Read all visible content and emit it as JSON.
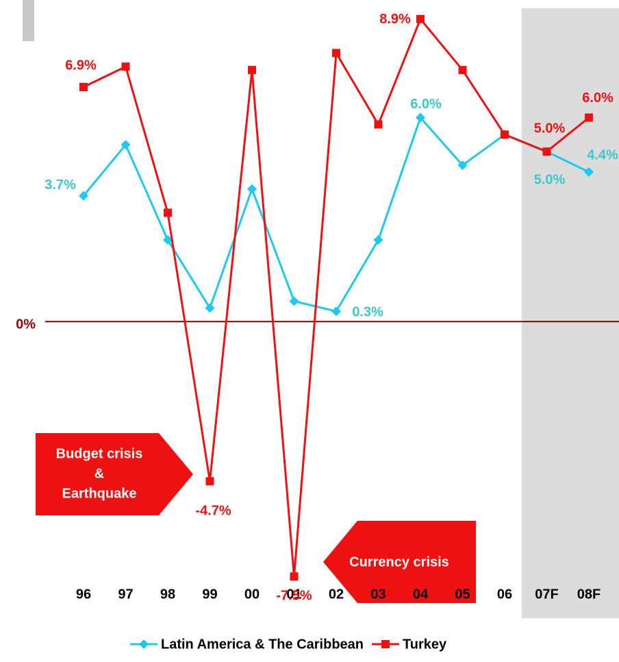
{
  "chart_data": {
    "type": "line",
    "categories": [
      "96",
      "97",
      "98",
      "99",
      "00",
      "01",
      "02",
      "03",
      "04",
      "05",
      "06",
      "07F",
      "08F"
    ],
    "series": [
      {
        "name": "Latin America & The Caribbean",
        "color": "#1ec8f0",
        "label_color": "#3cc8c8",
        "values": [
          3.7,
          5.2,
          2.4,
          0.4,
          3.9,
          0.6,
          0.3,
          2.4,
          6.0,
          4.6,
          5.5,
          5.0,
          4.4
        ],
        "value_labels": [
          "3.7%",
          null,
          null,
          null,
          null,
          null,
          "0.3%",
          null,
          "6.0%",
          null,
          null,
          "5.0%",
          "4.4%"
        ]
      },
      {
        "name": "Turkey",
        "color": "#ee1111",
        "label_color": "#ee1111",
        "values": [
          6.9,
          7.5,
          3.2,
          -4.7,
          7.4,
          -7.5,
          7.9,
          5.8,
          8.9,
          7.4,
          5.5,
          5.0,
          6.0
        ],
        "value_labels": [
          "6.9%",
          null,
          null,
          "-4.7%",
          null,
          "-7.5%",
          null,
          null,
          "8.9%",
          null,
          null,
          "5.0%",
          "6.0%"
        ]
      }
    ],
    "ylim": [
      -8,
      9.4
    ],
    "yticks": [
      {
        "value": 0,
        "label": "0%"
      }
    ],
    "annotations": [
      {
        "lines": [
          "Budget crisis",
          "&",
          "Earthquake"
        ]
      },
      {
        "lines": [
          "Currency crisis"
        ]
      }
    ]
  }
}
